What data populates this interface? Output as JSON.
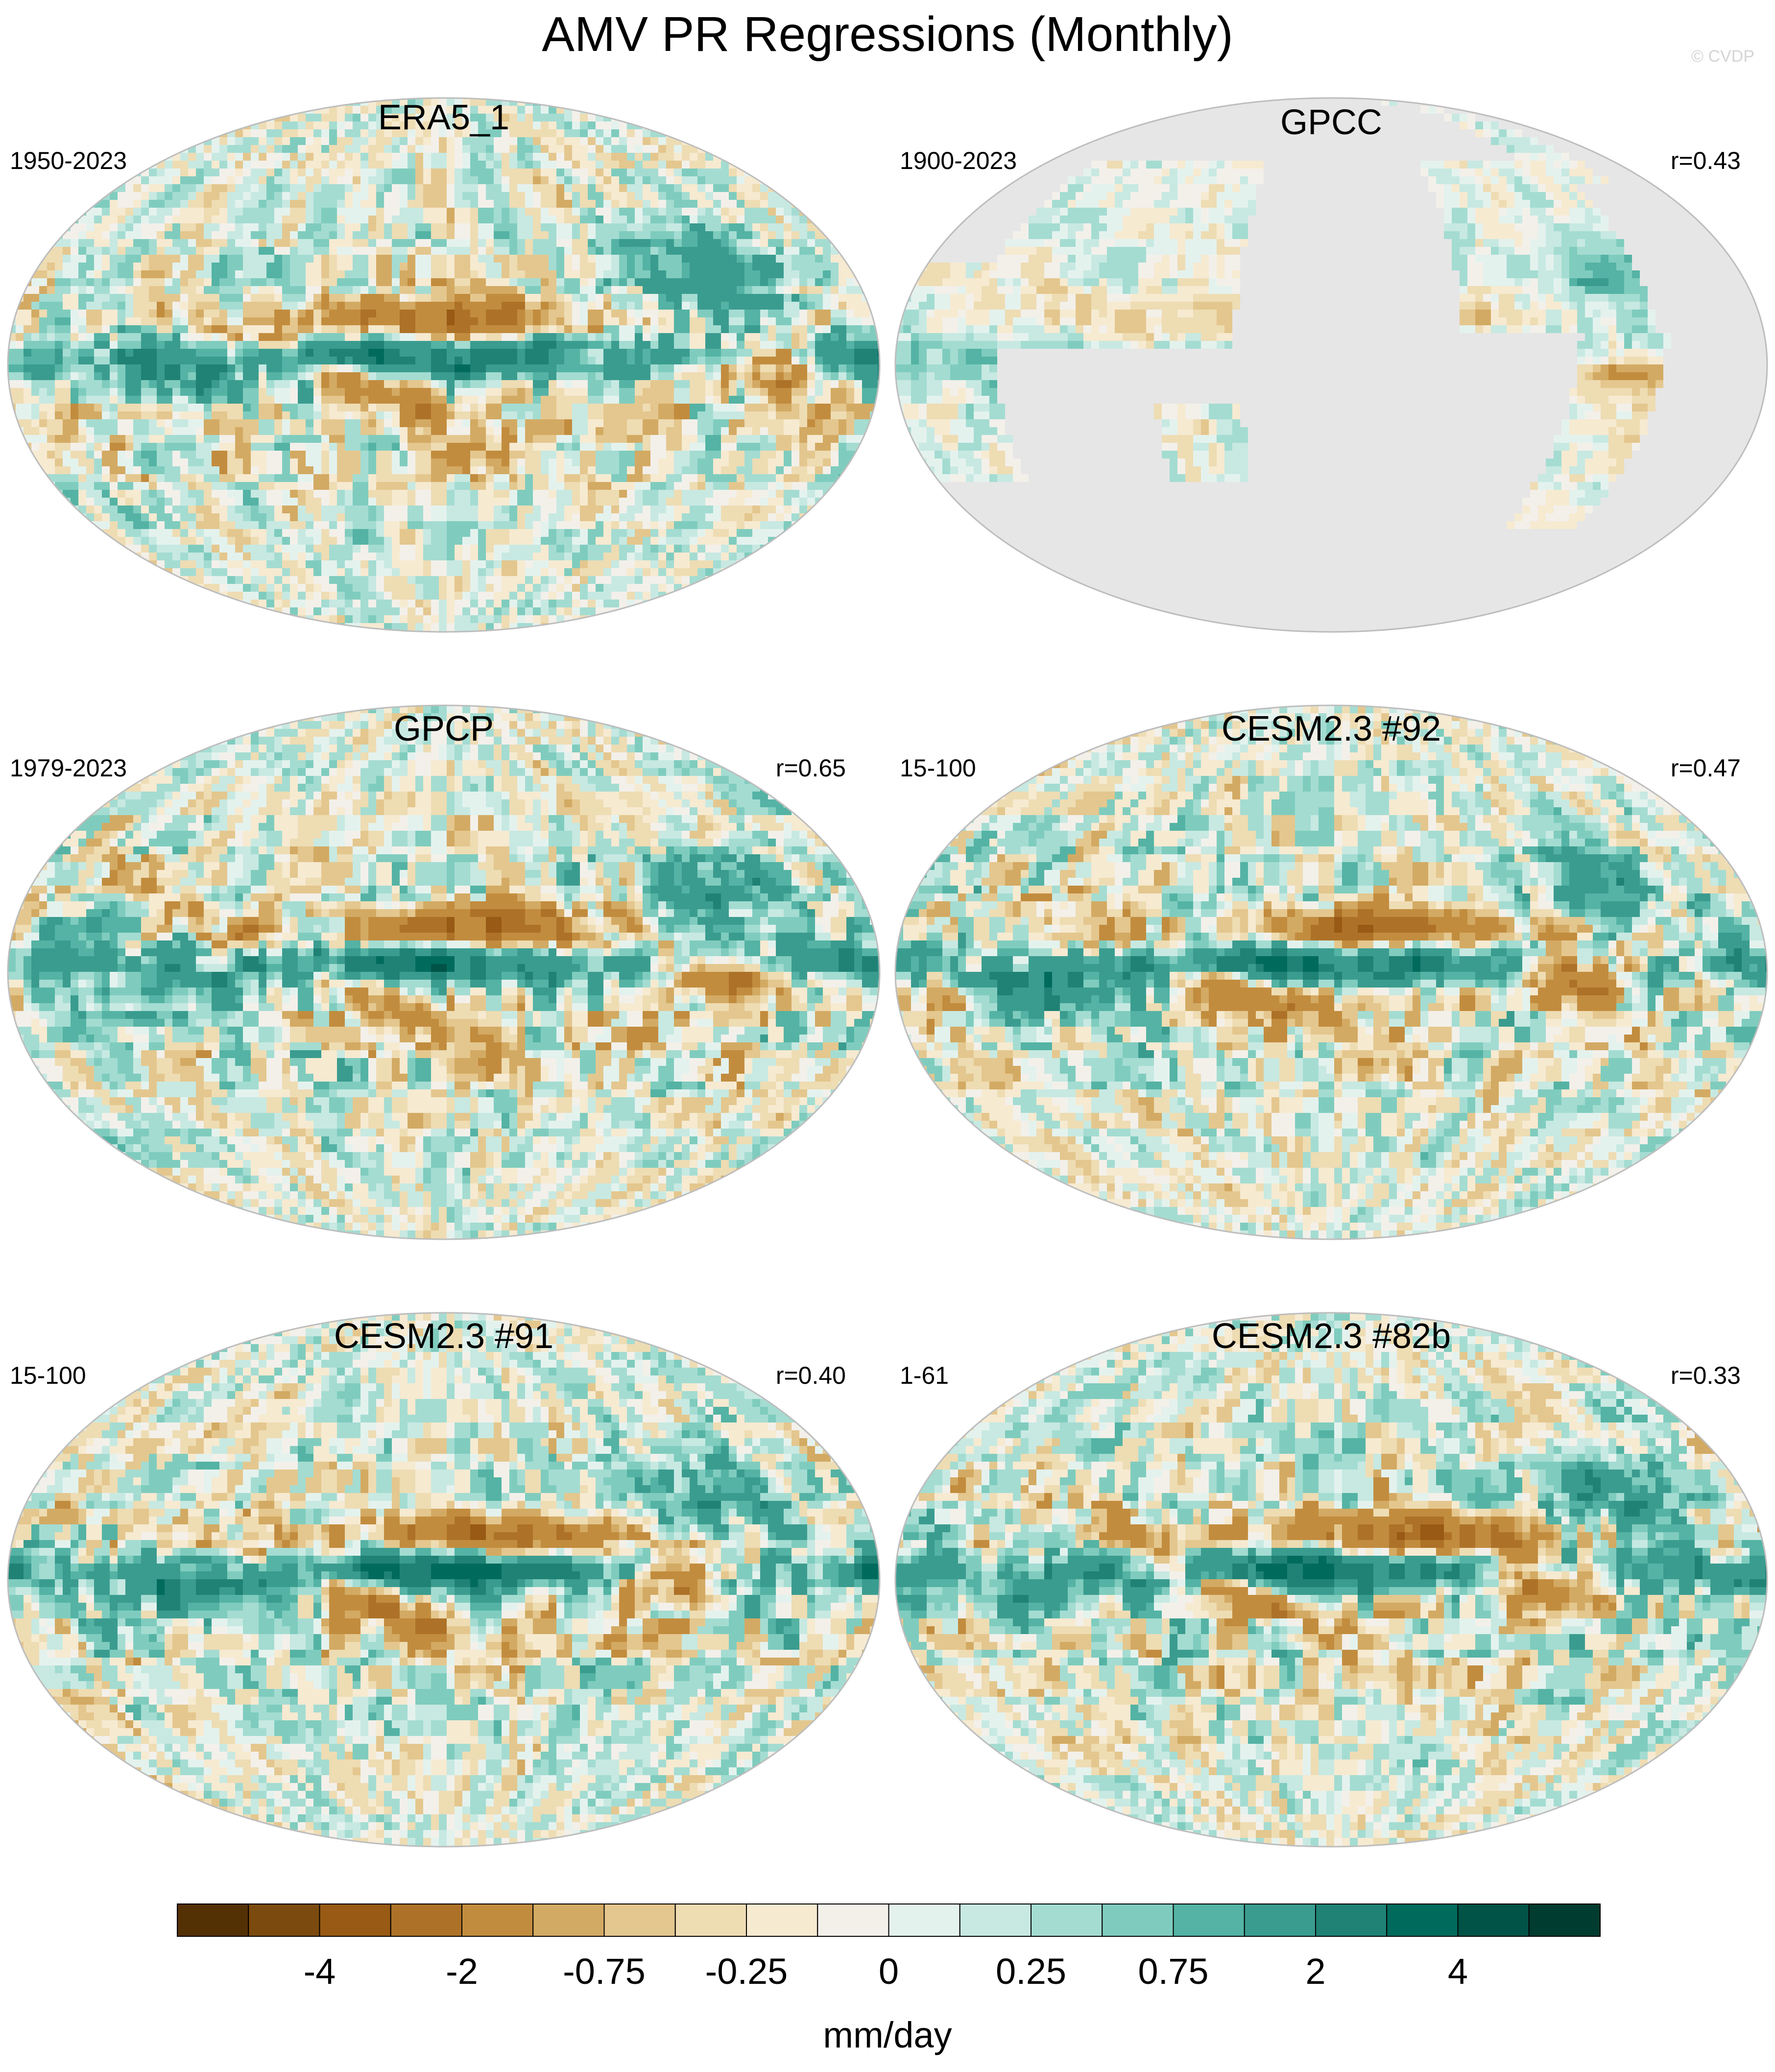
{
  "title": "AMV PR Regressions (Monthly)",
  "credit": "© CVDP",
  "panels": [
    {
      "title": "ERA5_1",
      "period": "1950-2023",
      "r": "",
      "land_only": false
    },
    {
      "title": "GPCC",
      "period": "1900-2023",
      "r": "r=0.43",
      "land_only": true
    },
    {
      "title": "GPCP",
      "period": "1979-2023",
      "r": "r=0.65",
      "land_only": false
    },
    {
      "title": "CESM2.3 #92",
      "period": "15-100",
      "r": "r=0.47",
      "land_only": false
    },
    {
      "title": "CESM2.3 #91",
      "period": "15-100",
      "r": "r=0.40",
      "land_only": false
    },
    {
      "title": "CESM2.3 #82b",
      "period": "1-61",
      "r": "r=0.33",
      "land_only": false
    }
  ],
  "colorbar": {
    "units": "mm/day",
    "colors": [
      "#543005",
      "#7b4a0e",
      "#985a14",
      "#ad7228",
      "#c28c3e",
      "#d3aa63",
      "#e4c78e",
      "#eedcb3",
      "#f6ead1",
      "#f3f0ea",
      "#e4f2ee",
      "#c7e9e2",
      "#a4dcd2",
      "#7fccbe",
      "#54b3a4",
      "#3a9c8f",
      "#1f8275",
      "#006b5d",
      "#015347",
      "#003c30"
    ],
    "labels": [
      "-4",
      "-2",
      "-0.75",
      "-0.25",
      "0",
      "0.25",
      "0.75",
      "2",
      "4"
    ],
    "label_boundaries": [
      2,
      4,
      6,
      8,
      10,
      12,
      14,
      16,
      18
    ]
  },
  "land_mask_color": "#e6e6e6"
}
